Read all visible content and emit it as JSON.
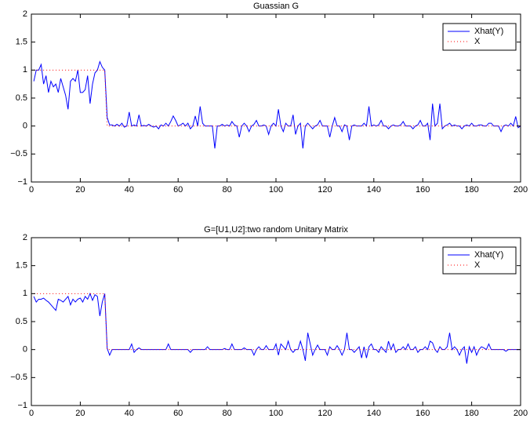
{
  "chart_data": [
    {
      "type": "line",
      "title": "Guassian G",
      "x": [
        1,
        2,
        3,
        4,
        5,
        6,
        7,
        8,
        9,
        10,
        11,
        12,
        13,
        14,
        15,
        16,
        17,
        18,
        19,
        20,
        21,
        22,
        23,
        24,
        25,
        26,
        27,
        28,
        29,
        30,
        31,
        32,
        33,
        34,
        35,
        36,
        37,
        38,
        39,
        40,
        41,
        42,
        43,
        44,
        45,
        46,
        47,
        48,
        49,
        50,
        51,
        52,
        53,
        54,
        55,
        56,
        57,
        58,
        59,
        60,
        61,
        62,
        63,
        64,
        65,
        66,
        67,
        68,
        69,
        70,
        71,
        72,
        73,
        74,
        75,
        76,
        77,
        78,
        79,
        80,
        81,
        82,
        83,
        84,
        85,
        86,
        87,
        88,
        89,
        90,
        91,
        92,
        93,
        94,
        95,
        96,
        97,
        98,
        99,
        100,
        101,
        102,
        103,
        104,
        105,
        106,
        107,
        108,
        109,
        110,
        111,
        112,
        113,
        114,
        115,
        116,
        117,
        118,
        119,
        120,
        121,
        122,
        123,
        124,
        125,
        126,
        127,
        128,
        129,
        130,
        131,
        132,
        133,
        134,
        135,
        136,
        137,
        138,
        139,
        140,
        141,
        142,
        143,
        144,
        145,
        146,
        147,
        148,
        149,
        150,
        151,
        152,
        153,
        154,
        155,
        156,
        157,
        158,
        159,
        160,
        161,
        162,
        163,
        164,
        165,
        166,
        167,
        168,
        169,
        170,
        171,
        172,
        173,
        174,
        175,
        176,
        177,
        178,
        179,
        180,
        181,
        182,
        183,
        184,
        185,
        186,
        187,
        188,
        189,
        190,
        191,
        192,
        193,
        194,
        195,
        196,
        197,
        198,
        199,
        200
      ],
      "series": [
        {
          "name": "Xhat(Y)",
          "color": "#0000ff",
          "style": "solid",
          "values": [
            0.8,
            1.0,
            1.0,
            1.1,
            0.75,
            0.9,
            0.6,
            0.8,
            0.7,
            0.75,
            0.6,
            0.85,
            0.7,
            0.55,
            0.3,
            0.8,
            0.85,
            0.8,
            1.0,
            0.6,
            0.6,
            0.65,
            0.9,
            0.4,
            0.75,
            0.95,
            1.0,
            1.15,
            1.05,
            1.0,
            0.15,
            0.02,
            0.02,
            0,
            0.03,
            0,
            0.05,
            -0.02,
            0,
            0.25,
            0,
            0.02,
            0,
            0.2,
            0,
            0.01,
            0,
            0.03,
            0,
            -0.02,
            0,
            -0.05,
            0.02,
            0,
            0.05,
            0,
            0.08,
            0.18,
            0.1,
            0,
            0.02,
            0.05,
            0,
            0.05,
            -0.05,
            0,
            0.18,
            0,
            0.35,
            0.05,
            0,
            0,
            0,
            0,
            -0.4,
            0,
            0,
            0.03,
            0,
            0.02,
            0,
            0.08,
            0.02,
            0,
            -0.2,
            0,
            0.05,
            0,
            -0.1,
            0,
            0.03,
            0.1,
            0,
            0,
            0.02,
            0,
            -0.15,
            0,
            0.05,
            0,
            0.3,
            0,
            -0.1,
            0.05,
            0,
            0,
            0.2,
            -0.15,
            0,
            0.05,
            -0.4,
            0,
            0.05,
            0,
            -0.05,
            0,
            0.02,
            0.1,
            0,
            0,
            0,
            -0.2,
            0,
            0.15,
            0,
            0,
            -0.1,
            0.02,
            0,
            -0.25,
            0,
            0.02,
            0,
            0,
            0,
            0.05,
            0,
            0.35,
            0,
            0.02,
            0,
            0.02,
            0.1,
            0,
            0,
            -0.05,
            0,
            0.02,
            0,
            0,
            0.02,
            0.08,
            0,
            0,
            0,
            -0.05,
            0,
            0.02,
            0.1,
            0,
            0,
            0.05,
            -0.25,
            0.4,
            0,
            0.05,
            0.4,
            -0.05,
            0,
            0.02,
            0.05,
            0,
            0.02,
            0,
            0,
            -0.05,
            0,
            0.02,
            0,
            0.05,
            0,
            0,
            0.02,
            0.02,
            0,
            0,
            0.05,
            0.05,
            0,
            0,
            0,
            -0.1,
            0,
            0.02,
            0,
            0.05,
            0,
            0.17,
            -0.03,
            0
          ]
        },
        {
          "name": "X",
          "color": "#ff0000",
          "style": "dotted",
          "values": [
            1,
            1,
            1,
            1,
            1,
            1,
            1,
            1,
            1,
            1,
            1,
            1,
            1,
            1,
            1,
            1,
            1,
            1,
            1,
            1,
            1,
            1,
            1,
            1,
            1,
            1,
            1,
            1,
            1,
            1,
            0,
            0,
            0,
            0,
            0,
            0,
            0,
            0,
            0,
            0,
            0,
            0,
            0,
            0,
            0,
            0,
            0,
            0,
            0,
            0,
            0,
            0,
            0,
            0,
            0,
            0,
            0,
            0,
            0,
            0,
            0,
            0,
            0,
            0,
            0,
            0,
            0,
            0,
            0,
            0,
            0,
            0,
            0,
            0,
            0,
            0,
            0,
            0,
            0,
            0,
            0,
            0,
            0,
            0,
            0,
            0,
            0,
            0,
            0,
            0,
            0,
            0,
            0,
            0,
            0,
            0,
            0,
            0,
            0,
            0,
            0,
            0,
            0,
            0,
            0,
            0,
            0,
            0,
            0,
            0,
            0,
            0,
            0,
            0,
            0,
            0,
            0,
            0,
            0,
            0,
            0,
            0,
            0,
            0,
            0,
            0,
            0,
            0,
            0,
            0,
            0,
            0,
            0,
            0,
            0,
            0,
            0,
            0,
            0,
            0,
            0,
            0,
            0,
            0,
            0,
            0,
            0,
            0,
            0,
            0,
            0,
            0,
            0,
            0,
            0,
            0,
            0,
            0,
            0,
            0,
            0,
            0,
            0,
            0,
            0,
            0,
            0,
            0,
            0,
            0,
            0,
            0,
            0,
            0,
            0,
            0,
            0,
            0,
            0,
            0,
            0,
            0,
            0,
            0,
            0,
            0,
            0,
            0,
            0,
            0,
            0,
            0,
            0,
            0,
            0,
            0,
            0,
            0,
            0,
            0
          ]
        }
      ],
      "xlim": [
        0,
        200
      ],
      "xticks": [
        0,
        20,
        40,
        60,
        80,
        100,
        120,
        140,
        160,
        180,
        200
      ],
      "ylim": [
        -1,
        2
      ],
      "yticks": [
        {
          "value": -1,
          "label": "−1"
        },
        {
          "value": -0.5,
          "label": "−0.5"
        },
        0,
        0.5,
        1,
        1.5,
        2
      ],
      "legend": "upper right",
      "grid": false
    },
    {
      "type": "line",
      "title": "G=[U1,U2]:two random Unitary Matrix",
      "x": [
        1,
        2,
        3,
        4,
        5,
        6,
        7,
        8,
        9,
        10,
        11,
        12,
        13,
        14,
        15,
        16,
        17,
        18,
        19,
        20,
        21,
        22,
        23,
        24,
        25,
        26,
        27,
        28,
        29,
        30,
        31,
        32,
        33,
        34,
        35,
        36,
        37,
        38,
        39,
        40,
        41,
        42,
        43,
        44,
        45,
        46,
        47,
        48,
        49,
        50,
        51,
        52,
        53,
        54,
        55,
        56,
        57,
        58,
        59,
        60,
        61,
        62,
        63,
        64,
        65,
        66,
        67,
        68,
        69,
        70,
        71,
        72,
        73,
        74,
        75,
        76,
        77,
        78,
        79,
        80,
        81,
        82,
        83,
        84,
        85,
        86,
        87,
        88,
        89,
        90,
        91,
        92,
        93,
        94,
        95,
        96,
        97,
        98,
        99,
        100,
        101,
        102,
        103,
        104,
        105,
        106,
        107,
        108,
        109,
        110,
        111,
        112,
        113,
        114,
        115,
        116,
        117,
        118,
        119,
        120,
        121,
        122,
        123,
        124,
        125,
        126,
        127,
        128,
        129,
        130,
        131,
        132,
        133,
        134,
        135,
        136,
        137,
        138,
        139,
        140,
        141,
        142,
        143,
        144,
        145,
        146,
        147,
        148,
        149,
        150,
        151,
        152,
        153,
        154,
        155,
        156,
        157,
        158,
        159,
        160,
        161,
        162,
        163,
        164,
        165,
        166,
        167,
        168,
        169,
        170,
        171,
        172,
        173,
        174,
        175,
        176,
        177,
        178,
        179,
        180,
        181,
        182,
        183,
        184,
        185,
        186,
        187,
        188,
        189,
        190,
        191,
        192,
        193,
        194,
        195,
        196,
        197,
        198,
        199,
        200
      ],
      "series": [
        {
          "name": "Xhat(Y)",
          "color": "#0000ff",
          "style": "solid",
          "values": [
            0.95,
            0.85,
            0.9,
            0.9,
            0.92,
            0.88,
            0.85,
            0.8,
            0.75,
            0.7,
            0.9,
            0.88,
            0.85,
            0.9,
            0.95,
            0.8,
            0.9,
            0.85,
            0.9,
            0.92,
            0.85,
            0.95,
            0.9,
            1.0,
            0.88,
            0.98,
            0.95,
            0.6,
            0.85,
            1.0,
            0.02,
            -0.1,
            0,
            0,
            0,
            0,
            0,
            0,
            0,
            0,
            0.1,
            -0.05,
            0,
            0.03,
            0,
            0,
            0,
            0,
            0,
            0,
            0,
            0,
            0,
            0,
            0,
            0.1,
            0,
            0,
            0,
            0,
            0,
            0,
            0,
            0,
            -0.05,
            0,
            0,
            0,
            0,
            0,
            0,
            0.05,
            0,
            0,
            0,
            0,
            0,
            0,
            0.02,
            0,
            0,
            0.1,
            0,
            0,
            0,
            0,
            0.03,
            0,
            0,
            0,
            -0.1,
            0,
            0.05,
            0,
            0,
            0.07,
            0,
            0,
            0,
            0.1,
            -0.1,
            0.1,
            0.05,
            0,
            0.15,
            0,
            -0.05,
            0,
            0,
            0.15,
            0,
            -0.2,
            0.3,
            0.1,
            -0.1,
            0,
            0.08,
            0,
            0,
            0,
            -0.1,
            0.05,
            0,
            0,
            0.07,
            0,
            -0.1,
            0,
            0.3,
            0,
            0,
            -0.05,
            0,
            0.05,
            -0.15,
            0.05,
            -0.15,
            0.05,
            0.1,
            0,
            0,
            -0.05,
            0.05,
            0,
            -0.05,
            0.15,
            0,
            0.1,
            -0.05,
            0,
            0,
            0.05,
            0,
            0.1,
            0,
            0,
            0.05,
            -0.05,
            0,
            0,
            0.05,
            0,
            0.15,
            0.12,
            0,
            -0.05,
            0.05,
            0,
            0,
            0.05,
            0.3,
            0,
            0.05,
            0,
            -0.1,
            0,
            0.05,
            -0.25,
            0.05,
            -0.05,
            0.05,
            -0.1,
            0,
            0.05,
            0.03,
            0,
            0.1,
            0,
            0,
            0,
            0,
            0,
            0,
            -0.03,
            0,
            0,
            0,
            0,
            0,
            0
          ]
        },
        {
          "name": "X",
          "color": "#ff0000",
          "style": "dotted",
          "values": [
            1,
            1,
            1,
            1,
            1,
            1,
            1,
            1,
            1,
            1,
            1,
            1,
            1,
            1,
            1,
            1,
            1,
            1,
            1,
            1,
            1,
            1,
            1,
            1,
            1,
            1,
            1,
            1,
            1,
            1,
            0,
            0,
            0,
            0,
            0,
            0,
            0,
            0,
            0,
            0,
            0,
            0,
            0,
            0,
            0,
            0,
            0,
            0,
            0,
            0,
            0,
            0,
            0,
            0,
            0,
            0,
            0,
            0,
            0,
            0,
            0,
            0,
            0,
            0,
            0,
            0,
            0,
            0,
            0,
            0,
            0,
            0,
            0,
            0,
            0,
            0,
            0,
            0,
            0,
            0,
            0,
            0,
            0,
            0,
            0,
            0,
            0,
            0,
            0,
            0,
            0,
            0,
            0,
            0,
            0,
            0,
            0,
            0,
            0,
            0,
            0,
            0,
            0,
            0,
            0,
            0,
            0,
            0,
            0,
            0,
            0,
            0,
            0,
            0,
            0,
            0,
            0,
            0,
            0,
            0,
            0,
            0,
            0,
            0,
            0,
            0,
            0,
            0,
            0,
            0,
            0,
            0,
            0,
            0,
            0,
            0,
            0,
            0,
            0,
            0,
            0,
            0,
            0,
            0,
            0,
            0,
            0,
            0,
            0,
            0,
            0,
            0,
            0,
            0,
            0,
            0,
            0,
            0,
            0,
            0,
            0,
            0,
            0,
            0,
            0,
            0,
            0,
            0,
            0,
            0,
            0,
            0,
            0,
            0,
            0,
            0,
            0,
            0,
            0,
            0,
            0,
            0,
            0,
            0,
            0,
            0,
            0,
            0,
            0,
            0,
            0,
            0,
            0,
            0,
            0,
            0,
            0,
            0,
            0,
            0
          ]
        }
      ],
      "xlim": [
        0,
        200
      ],
      "xticks": [
        0,
        20,
        40,
        60,
        80,
        100,
        120,
        140,
        160,
        180,
        200
      ],
      "ylim": [
        -1,
        2
      ],
      "yticks": [
        {
          "value": -1,
          "label": "−1"
        },
        {
          "value": -0.5,
          "label": "−0.5"
        },
        0,
        0.5,
        1,
        1.5,
        2
      ],
      "legend": "upper right",
      "grid": false
    }
  ]
}
